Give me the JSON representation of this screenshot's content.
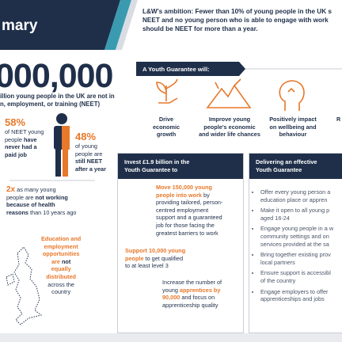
{
  "summary_panel": {
    "title": "mary",
    "big_number": "000,000",
    "intro": [
      "illion young people in the UK are not in",
      "n, employment, or training (NEET)"
    ],
    "stat_never_worked": {
      "figure": "58%",
      "text": [
        "of NEET young",
        "people ",
        "have",
        "never had a",
        "paid job"
      ]
    },
    "stat_still_neet": {
      "figure": "48%",
      "text": [
        "of young",
        "people are",
        "still NEET",
        "after a year"
      ]
    },
    "stat_health": {
      "figure": "2x",
      "text": [
        " as many young",
        "people are ",
        "not working",
        "because of health",
        "reasons",
        " than 10 years ago"
      ]
    },
    "regional": {
      "text": [
        "Education and",
        "employment",
        "opportunities",
        "are ",
        "not",
        "equally",
        "distributed",
        "across the",
        "country"
      ]
    }
  },
  "ambition": {
    "lines": [
      "L&W's ambition: Fewer than 10% of young people in the UK s",
      "NEET and no young person who is able to engage with work",
      "should be NEET for more than a year."
    ]
  },
  "youth_guarantee": {
    "heading": "A Youth Guarantee will:",
    "benefits": [
      {
        "label": [
          "Drive",
          "economic",
          "growth"
        ]
      },
      {
        "label": [
          "Improve young",
          "people's economic",
          "and wider life chances"
        ]
      },
      {
        "label": [
          "Positively impact",
          "on wellbeing and",
          "behaviour"
        ]
      },
      {
        "label": [
          "R"
        ]
      }
    ]
  },
  "investment": {
    "heading": [
      "Invest £1.9 billion in the",
      "Youth Guarantee to"
    ],
    "items": [
      [
        "Move 150,000 young",
        "people into work",
        " by",
        "providing tailored, person-",
        "centred employment",
        "support and a guaranteed",
        "job for those facing the",
        "greatest barriers to work"
      ],
      [
        "Support 10,000 young",
        "people",
        " to get qualified",
        "to at least level 3"
      ],
      [
        "Increase the number of",
        "young ",
        "apprentices by",
        "90,000",
        " and focus on",
        "apprenticeship quality"
      ]
    ]
  },
  "delivery": {
    "heading": [
      "Delivering an effective",
      "Youth Guarantee"
    ],
    "bullets": [
      [
        "Offer every young person a",
        "education place or appren"
      ],
      [
        "Make it open to all young p",
        "aged 16-24"
      ],
      [
        "Engage young people in a w",
        "community settings and on",
        "services provided at the sa"
      ],
      [
        "Bring together existing prov",
        "local partners"
      ],
      [
        "Ensure support is accessibl",
        "of the country"
      ],
      [
        "Engage employers to offer",
        "apprenticeships and jobs"
      ]
    ]
  }
}
